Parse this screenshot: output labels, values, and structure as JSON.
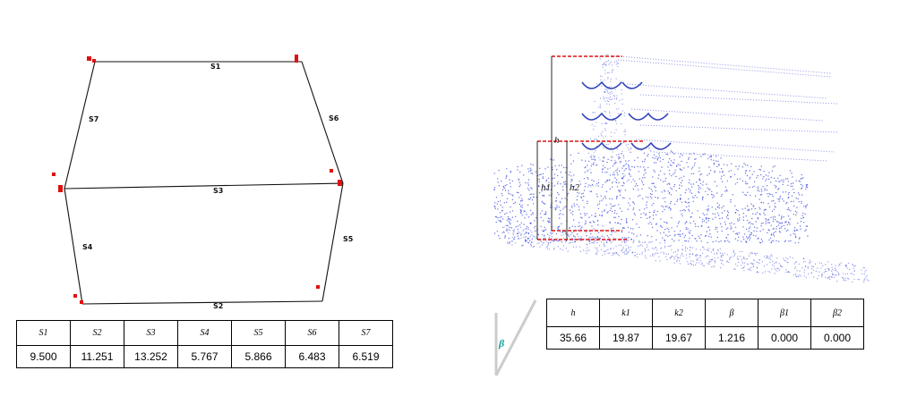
{
  "segments": {
    "labels": [
      "S1",
      "S2",
      "S3",
      "S4",
      "S5",
      "S6",
      "S7"
    ],
    "table_headers": [
      "S1",
      "S2",
      "S3",
      "S4",
      "S5",
      "S6",
      "S7"
    ],
    "table_values": [
      "9.500",
      "11.251",
      "13.252",
      "5.767",
      "5.866",
      "6.483",
      "6.519"
    ]
  },
  "params": {
    "dimension_labels": [
      "h",
      "h1",
      "h2"
    ],
    "table_headers": [
      "h",
      "k1",
      "k2",
      "β",
      "β1",
      "β2"
    ],
    "table_values": [
      "35.66",
      "19.87",
      "19.67",
      "1.216",
      "0.000",
      "0.000"
    ]
  },
  "angle_symbol": "β",
  "colors": {
    "line": "#111111",
    "marker": "#e01010",
    "points": "#3344dd",
    "dashed": "#e01010",
    "angle": "#1aa39a"
  }
}
